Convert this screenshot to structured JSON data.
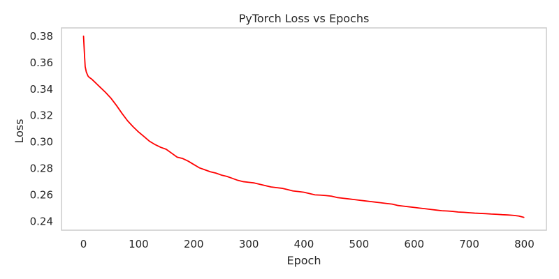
{
  "chart_data": {
    "type": "line",
    "title": "PyTorch Loss vs Epochs",
    "xlabel": "Epoch",
    "ylabel": "Loss",
    "xlim": [
      -40,
      840
    ],
    "ylim": [
      0.2333,
      0.3863
    ],
    "grid": false,
    "legend": "none",
    "x_ticks": [
      0,
      100,
      200,
      300,
      400,
      500,
      600,
      700,
      800
    ],
    "x_tick_labels": [
      "0",
      "100",
      "200",
      "300",
      "400",
      "500",
      "600",
      "700",
      "800"
    ],
    "y_ticks": [
      0.24,
      0.26,
      0.28,
      0.3,
      0.32,
      0.34,
      0.36,
      0.38
    ],
    "y_tick_labels": [
      "0.24",
      "0.26",
      "0.28",
      "0.30",
      "0.32",
      "0.34",
      "0.36",
      "0.38"
    ],
    "series": [
      {
        "color": "#ff0000",
        "x": [
          0,
          1,
          2,
          3,
          5,
          8,
          10,
          15,
          20,
          25,
          30,
          40,
          50,
          60,
          70,
          80,
          90,
          100,
          110,
          120,
          130,
          140,
          150,
          160,
          170,
          180,
          190,
          200,
          210,
          220,
          230,
          240,
          250,
          260,
          270,
          280,
          290,
          300,
          310,
          320,
          330,
          340,
          350,
          360,
          370,
          380,
          390,
          400,
          410,
          420,
          430,
          440,
          450,
          460,
          470,
          480,
          490,
          500,
          510,
          520,
          530,
          540,
          550,
          560,
          570,
          580,
          590,
          600,
          610,
          620,
          630,
          640,
          650,
          660,
          670,
          680,
          690,
          700,
          710,
          720,
          730,
          740,
          750,
          760,
          770,
          780,
          790,
          799
        ],
        "y": [
          0.38,
          0.372,
          0.364,
          0.357,
          0.353,
          0.35,
          0.349,
          0.3475,
          0.3455,
          0.3435,
          0.3415,
          0.3375,
          0.333,
          0.3275,
          0.3215,
          0.316,
          0.3115,
          0.3075,
          0.304,
          0.3005,
          0.298,
          0.296,
          0.2945,
          0.2915,
          0.2885,
          0.2875,
          0.2855,
          0.283,
          0.2805,
          0.279,
          0.2775,
          0.2765,
          0.275,
          0.274,
          0.2725,
          0.271,
          0.27,
          0.2695,
          0.269,
          0.268,
          0.267,
          0.266,
          0.2655,
          0.265,
          0.264,
          0.263,
          0.2625,
          0.262,
          0.261,
          0.26,
          0.2598,
          0.2595,
          0.259,
          0.258,
          0.2575,
          0.257,
          0.2565,
          0.256,
          0.2555,
          0.255,
          0.2545,
          0.254,
          0.2535,
          0.253,
          0.252,
          0.2515,
          0.251,
          0.2505,
          0.25,
          0.2495,
          0.249,
          0.2485,
          0.248,
          0.2478,
          0.2475,
          0.247,
          0.2468,
          0.2465,
          0.2462,
          0.246,
          0.2458,
          0.2455,
          0.2453,
          0.245,
          0.2448,
          0.2445,
          0.244,
          0.243
        ]
      }
    ]
  }
}
